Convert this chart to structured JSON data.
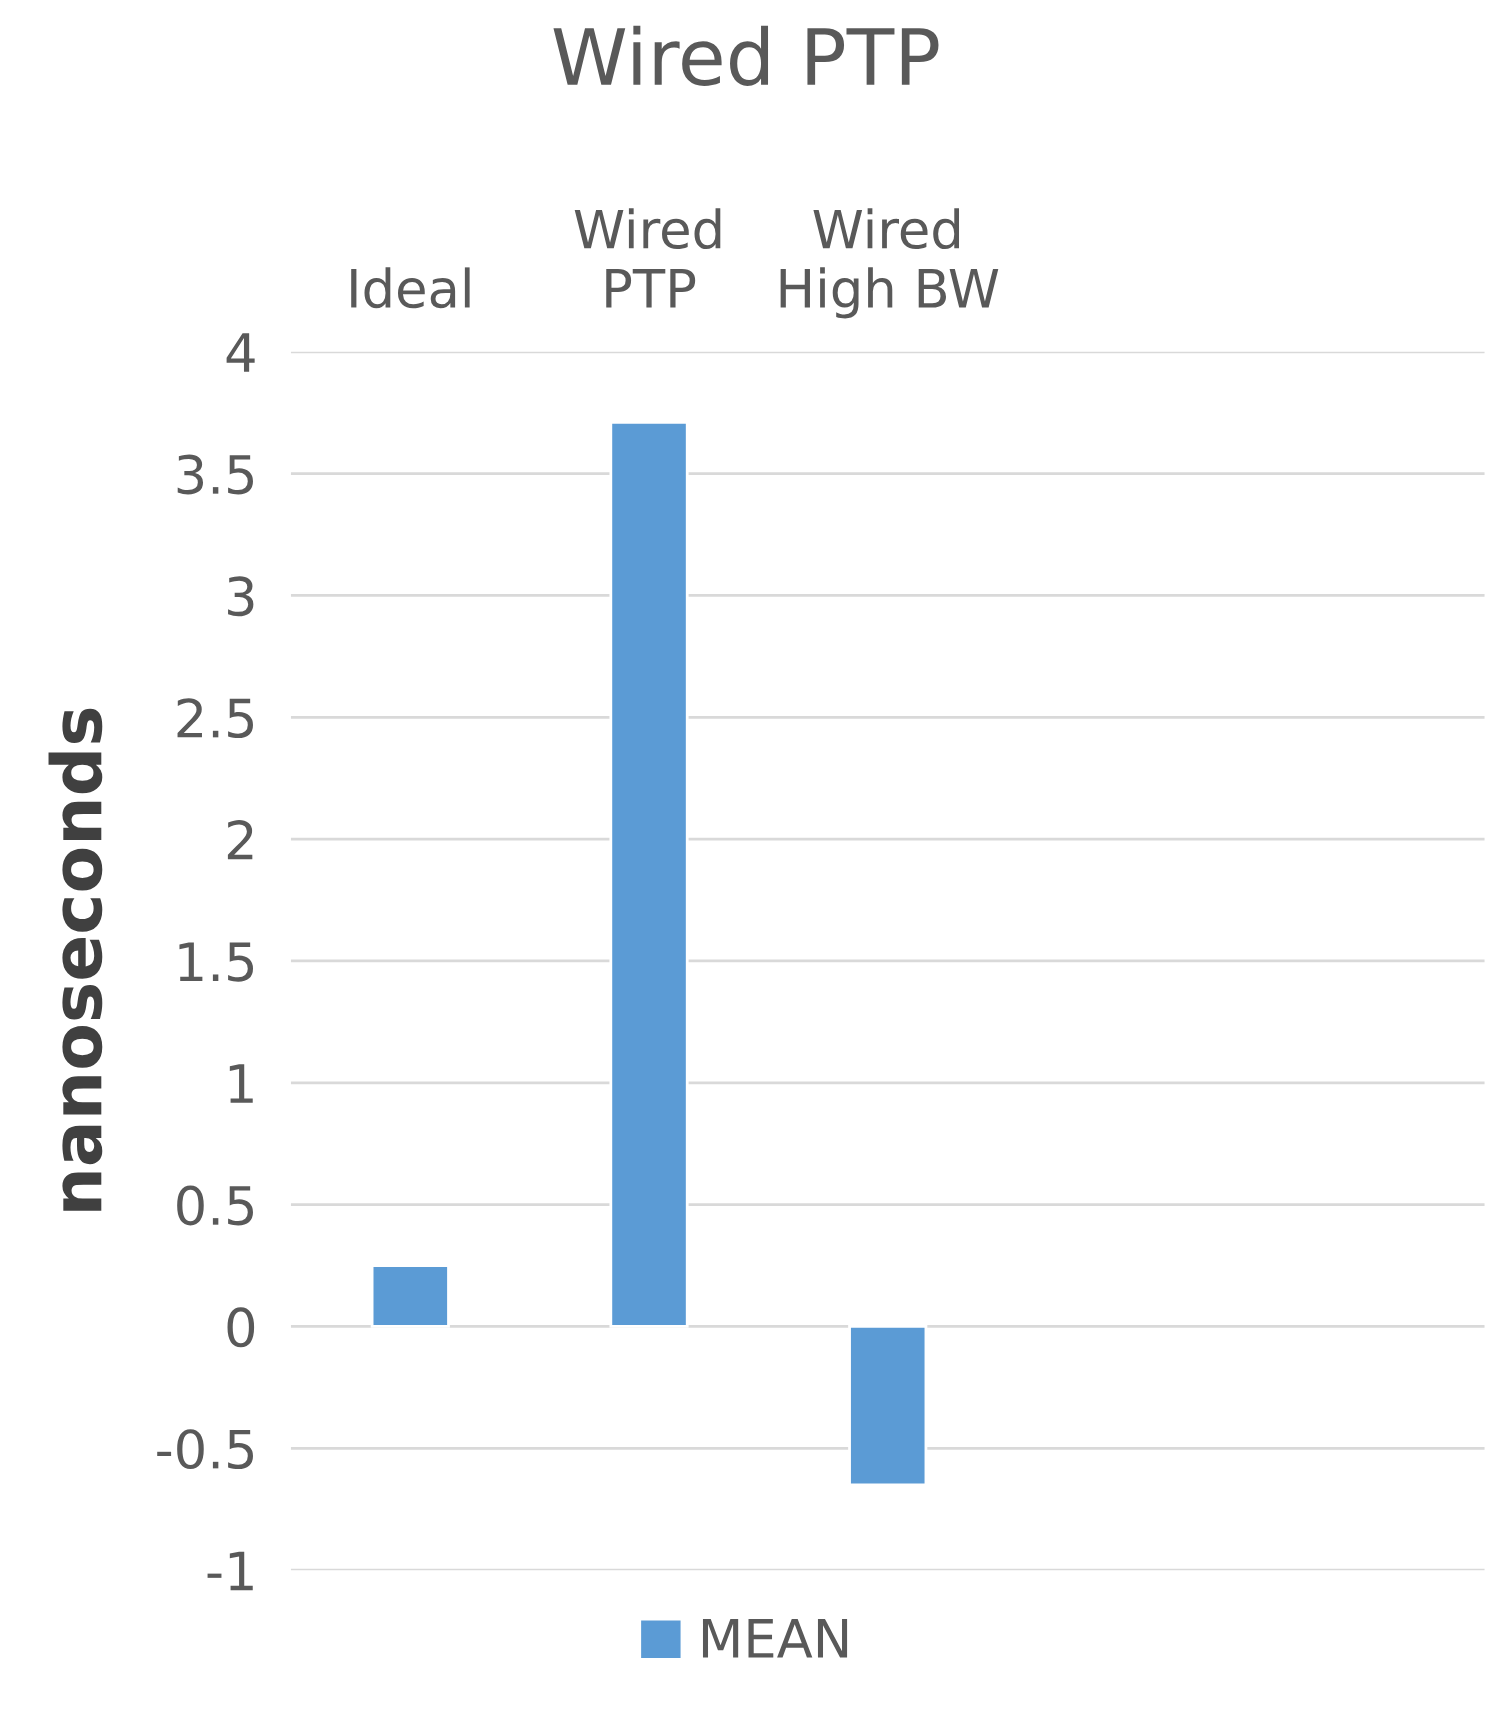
{
  "chart_data": {
    "type": "bar",
    "title": "Wired PTP",
    "ylabel": "nanoseconds",
    "categories": [
      "Ideal",
      "Wired\nPTP",
      "Wired\nHigh BW",
      null,
      null
    ],
    "series": [
      {
        "name": "MEAN",
        "color": "#5b9bd5",
        "values": [
          0.25,
          3.71,
          -0.65,
          null,
          null
        ]
      }
    ],
    "ylim": [
      -1,
      4
    ],
    "yticks": [
      -1,
      -0.5,
      0,
      0.5,
      1,
      1.5,
      2,
      2.5,
      3,
      3.5,
      4
    ],
    "grid": "y",
    "legend": "bottom"
  }
}
